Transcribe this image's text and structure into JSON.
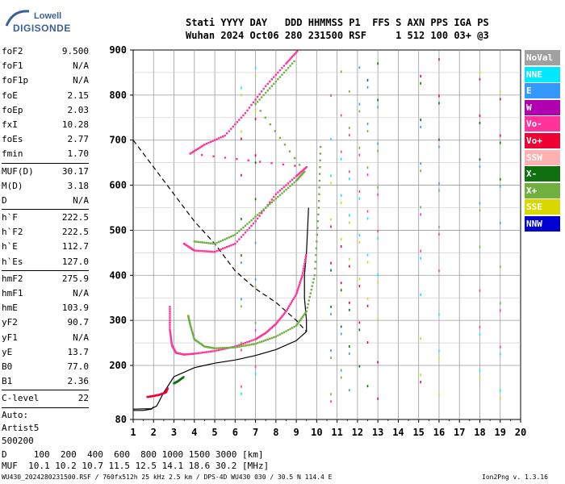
{
  "logo": {
    "line1": "Lowell",
    "line2": "DIGISONDE"
  },
  "header": {
    "labels": "Stati YYYY DAY   DDD HHMMSS P1  FFS S AXN PPS IGA PS",
    "values": "Wuhan 2024 Oct06 280 231500 RSF     1 512 100 03+ @3"
  },
  "params": {
    "group1": [
      {
        "name": "foF2",
        "value": "9.500"
      },
      {
        "name": "foF1",
        "value": "N/A"
      },
      {
        "name": "foF1p",
        "value": "N/A"
      },
      {
        "name": "foE",
        "value": "2.15"
      },
      {
        "name": "foEp",
        "value": "2.03"
      },
      {
        "name": "fxI",
        "value": "10.28"
      },
      {
        "name": "foEs",
        "value": "2.77"
      },
      {
        "name": "fmin",
        "value": "1.70"
      }
    ],
    "group2": [
      {
        "name": "MUF(D)",
        "value": "30.17"
      },
      {
        "name": "M(D)",
        "value": "3.18"
      },
      {
        "name": "D",
        "value": "N/A"
      }
    ],
    "group3": [
      {
        "name": "h`F",
        "value": "222.5"
      },
      {
        "name": "h`F2",
        "value": "222.5"
      },
      {
        "name": "h`E",
        "value": "112.7"
      },
      {
        "name": "h`Es",
        "value": "127.0"
      }
    ],
    "group4": [
      {
        "name": "hmF2",
        "value": "275.9"
      },
      {
        "name": "hmF1",
        "value": "N/A"
      },
      {
        "name": "hmE",
        "value": "103.9"
      },
      {
        "name": "yF2",
        "value": "90.7"
      },
      {
        "name": "yF1",
        "value": "N/A"
      },
      {
        "name": "yE",
        "value": "13.7"
      },
      {
        "name": "B0",
        "value": "77.0"
      },
      {
        "name": "B1",
        "value": "2.36"
      }
    ],
    "group5": [
      {
        "name": "C-level",
        "value": "22"
      }
    ],
    "extra": [
      "Auto:",
      "Artist5",
      "500200"
    ]
  },
  "footer": {
    "d_row": "D     100  200  400  600  800 1000 1500 3000 [km]",
    "muf_row": "MUF  10.1 10.2 10.7 11.5 12.5 14.1 18.6 30.2 [MHz]",
    "file_info": "WU430_2024280231500.RSF / 760fx512h 25 kHz 2.5 km / DPS-4D WU430 030 / 30.5 N 114.4 E",
    "version": "Ion2Png v. 1.3.16"
  },
  "legend": [
    {
      "label": "NoVal",
      "color": "#a0a0a0"
    },
    {
      "label": "NNE",
      "color": "#00e8ff"
    },
    {
      "label": "E",
      "color": "#3399ff"
    },
    {
      "label": "W",
      "color": "#b000b0"
    },
    {
      "label": "Vo-",
      "color": "#ff3399"
    },
    {
      "label": "Vo+",
      "color": "#ee0033"
    },
    {
      "label": "SSW",
      "color": "#ffb0b0"
    },
    {
      "label": "X-",
      "color": "#107010"
    },
    {
      "label": "X+",
      "color": "#70b040"
    },
    {
      "label": "SSE",
      "color": "#d8d800"
    },
    {
      "label": "NNW",
      "color": "#0000d0"
    }
  ],
  "chart_data": {
    "type": "scatter",
    "xlim": [
      1,
      20
    ],
    "ylim": [
      80,
      900
    ],
    "x_ticks": [
      1,
      2,
      3,
      4,
      5,
      6,
      7,
      8,
      9,
      10,
      11,
      12,
      13,
      14,
      15,
      16,
      17,
      18,
      19,
      20
    ],
    "y_ticks": [
      80,
      200,
      300,
      400,
      500,
      600,
      700,
      800,
      900
    ],
    "x_unit": "MHz",
    "y_unit": "km",
    "grid": true,
    "series": [
      {
        "name": "Vo-",
        "color": "#ff3399",
        "points": [
          [
            2.8,
            330
          ],
          [
            2.8,
            280
          ],
          [
            2.9,
            245
          ],
          [
            3.1,
            228
          ],
          [
            3.5,
            224
          ],
          [
            4,
            226
          ],
          [
            5,
            232
          ],
          [
            6,
            242
          ],
          [
            7,
            258
          ],
          [
            7.5,
            272
          ],
          [
            8,
            292
          ],
          [
            8.5,
            320
          ],
          [
            9,
            358
          ],
          [
            9.3,
            400
          ],
          [
            9.5,
            450
          ]
        ]
      },
      {
        "name": "X+",
        "color": "#70b040",
        "points": [
          [
            3.7,
            310
          ],
          [
            3.8,
            290
          ],
          [
            4.0,
            258
          ],
          [
            4.5,
            242
          ],
          [
            5,
            238
          ],
          [
            6,
            240
          ],
          [
            7,
            248
          ],
          [
            8,
            264
          ],
          [
            9,
            288
          ],
          [
            9.5,
            320
          ],
          [
            9.9,
            400
          ],
          [
            10.1,
            550
          ],
          [
            10.2,
            700
          ]
        ]
      },
      {
        "name": "Vo- multi",
        "color": "#ff3399",
        "points": [
          [
            3.5,
            470
          ],
          [
            4,
            455
          ],
          [
            5,
            452
          ],
          [
            6,
            470
          ],
          [
            7,
            520
          ],
          [
            8,
            580
          ],
          [
            9,
            620
          ],
          [
            9.5,
            640
          ],
          [
            3.8,
            670
          ],
          [
            4.5,
            690
          ],
          [
            5.5,
            710
          ],
          [
            6.5,
            760
          ],
          [
            7.5,
            820
          ],
          [
            8.5,
            870
          ],
          [
            9.1,
            900
          ]
        ]
      },
      {
        "name": "X+ multi",
        "color": "#70b040",
        "points": [
          [
            4,
            475
          ],
          [
            5,
            470
          ],
          [
            6,
            490
          ],
          [
            7,
            530
          ],
          [
            8,
            570
          ],
          [
            9,
            610
          ],
          [
            9.4,
            630
          ],
          [
            7,
            780
          ],
          [
            8,
            830
          ],
          [
            9,
            880
          ]
        ]
      },
      {
        "name": "Es/E",
        "color": "#ee0033",
        "points": [
          [
            1.7,
            130
          ],
          [
            2.0,
            132
          ],
          [
            2.3,
            135
          ],
          [
            2.6,
            140
          ],
          [
            2.7,
            150
          ]
        ]
      },
      {
        "name": "X- low",
        "color": "#107010",
        "points": [
          [
            3.0,
            160
          ],
          [
            3.2,
            165
          ],
          [
            3.5,
            175
          ]
        ]
      }
    ],
    "profile_solid": [
      [
        1,
        103
      ],
      [
        1.9,
        104
      ],
      [
        2.15,
        110
      ],
      [
        2.5,
        140
      ],
      [
        3,
        175
      ],
      [
        4,
        195
      ],
      [
        5,
        205
      ],
      [
        6,
        212
      ],
      [
        7,
        222
      ],
      [
        8,
        235
      ],
      [
        9,
        255
      ],
      [
        9.5,
        275
      ],
      [
        9.5,
        300
      ],
      [
        9.4,
        350
      ],
      [
        9.4,
        400
      ],
      [
        9.5,
        450
      ],
      [
        9.6,
        550
      ]
    ],
    "profile_dashed": [
      [
        1,
        700
      ],
      [
        2,
        640
      ],
      [
        3,
        580
      ],
      [
        4,
        520
      ],
      [
        5,
        470
      ],
      [
        6,
        410
      ],
      [
        7,
        370
      ],
      [
        8,
        340
      ],
      [
        9,
        300
      ],
      [
        9.5,
        275
      ]
    ],
    "profile_lower": [
      [
        1,
        100
      ],
      [
        1.5,
        100
      ],
      [
        1.9,
        103
      ],
      [
        2.0,
        108
      ]
    ]
  }
}
